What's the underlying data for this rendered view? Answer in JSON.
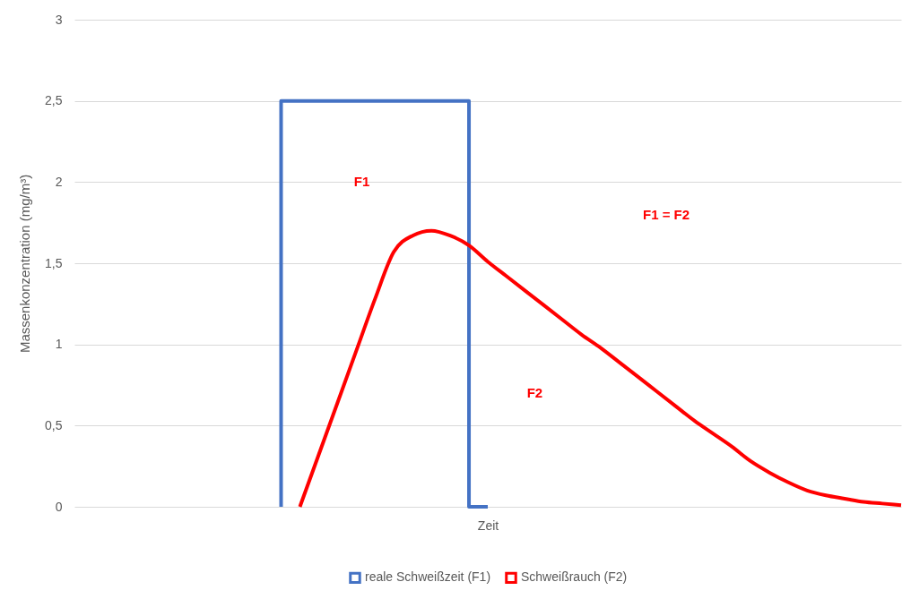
{
  "chart_data": {
    "type": "line",
    "xlabel": "Zeit",
    "ylabel": "Massenkonzentration (mg/m³)",
    "categories": [
      null,
      null,
      null,
      null,
      null,
      null,
      null,
      null,
      null,
      null,
      null,
      null,
      null,
      null,
      null,
      null,
      null,
      null,
      null,
      null,
      null,
      null,
      null,
      null,
      null,
      null,
      null,
      null,
      null,
      null,
      null,
      null,
      null,
      null,
      null,
      null,
      null,
      null,
      null,
      null,
      null,
      null,
      null,
      null,
      null
    ],
    "series": [
      {
        "name": "reale Schweißzeit (F1)",
        "type": "step",
        "color": "#4472c4",
        "values": [
          null,
          null,
          null,
          null,
          null,
          null,
          null,
          null,
          null,
          null,
          null,
          0,
          2.5,
          2.5,
          2.5,
          2.5,
          2.5,
          2.5,
          2.5,
          2.5,
          2.5,
          2.5,
          0,
          null,
          null,
          null,
          null,
          null,
          null,
          null,
          null,
          null,
          null,
          null,
          null,
          null,
          null,
          null,
          null,
          null,
          null,
          null,
          null,
          null,
          null
        ]
      },
      {
        "name": "Schweißrauch (F2)",
        "color": "#ff0000",
        "values": [
          null,
          null,
          null,
          null,
          null,
          null,
          null,
          null,
          null,
          null,
          null,
          null,
          0,
          0.32,
          0.64,
          0.96,
          1.28,
          1.57,
          1.67,
          1.7,
          1.67,
          1.61,
          1.51,
          1.42,
          1.33,
          1.24,
          1.15,
          1.06,
          0.98,
          0.89,
          0.8,
          0.71,
          0.62,
          0.53,
          0.45,
          0.37,
          0.28,
          0.21,
          0.15,
          0.1,
          0.07,
          0.05,
          0.03,
          0.02,
          0.01
        ]
      }
    ],
    "ylim": [
      0,
      3
    ],
    "yticks": [
      0,
      {
        "value": 0.5,
        "label": "0,5"
      },
      1,
      {
        "value": 1.5,
        "label": "1,5"
      },
      2,
      {
        "value": 2.5,
        "label": "2,5"
      },
      3
    ],
    "grid": "y",
    "legend": "bottom",
    "tick_labels": "y",
    "annotations": [
      "F1",
      "F1 = F2",
      "F2"
    ]
  }
}
